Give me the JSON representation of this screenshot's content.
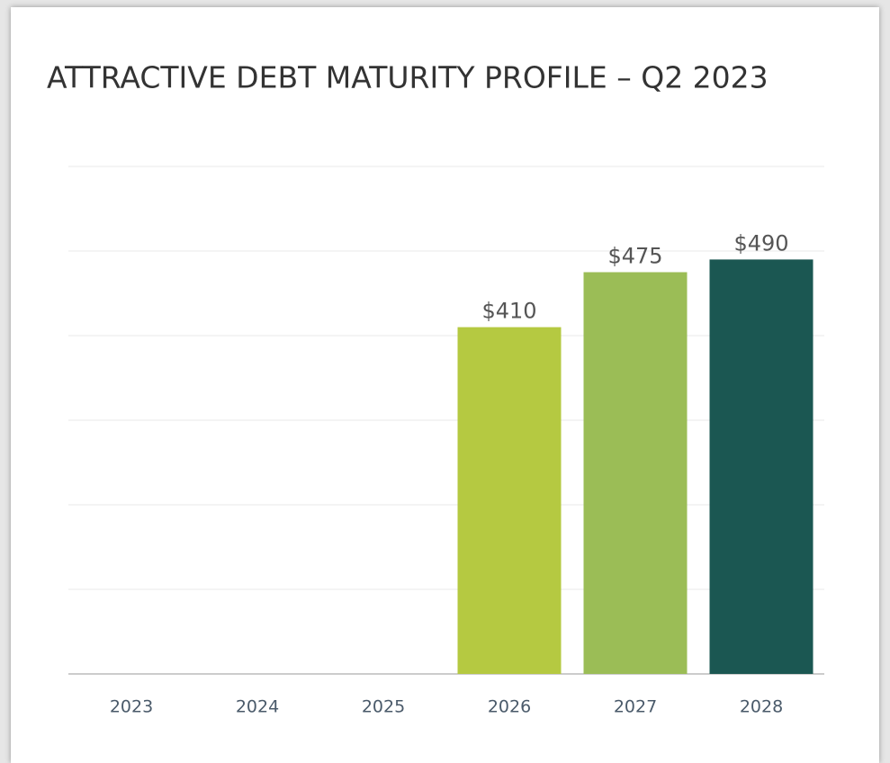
{
  "chart_data": {
    "type": "bar",
    "title": "ATTRACTIVE DEBT MATURITY PROFILE – Q2 2023",
    "categories": [
      "2023",
      "2024",
      "2025",
      "2026",
      "2027",
      "2028"
    ],
    "values": [
      0,
      0,
      0,
      410,
      475,
      490
    ],
    "value_labels": [
      null,
      null,
      null,
      "$410",
      "$475",
      "$490"
    ],
    "colors": [
      "#b5c941",
      "#b5c941",
      "#b5c941",
      "#b5c941",
      "#9bbd56",
      "#1b5752"
    ],
    "ylim": [
      0,
      600
    ],
    "yticks": [
      0,
      100,
      200,
      300,
      400,
      500,
      600
    ],
    "grid": true
  }
}
